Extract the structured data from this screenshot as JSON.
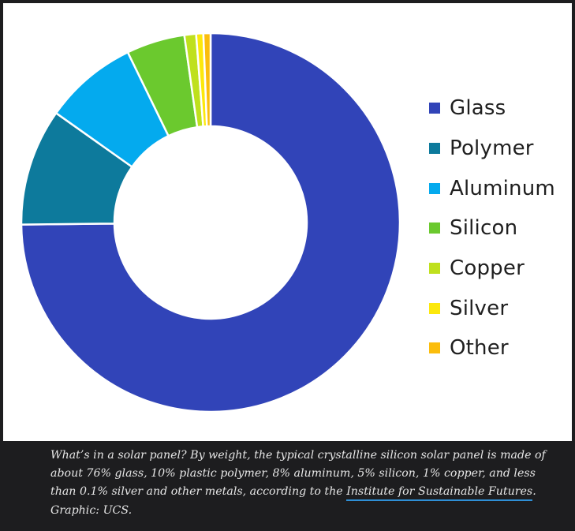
{
  "chart_data": {
    "type": "pie",
    "variant": "donut",
    "categories": [
      "Glass",
      "Polymer",
      "Aluminum",
      "Silicon",
      "Copper",
      "Silver",
      "Other"
    ],
    "values": [
      76,
      10,
      8,
      5,
      1,
      0.1,
      0.1
    ],
    "colors": [
      "#3144b8",
      "#0d7a9c",
      "#04aaee",
      "#6bc92e",
      "#bfe01d",
      "#fce80c",
      "#fbbd0c"
    ],
    "legend_position": "right",
    "title": ""
  },
  "caption": {
    "text": "What’s in a solar panel? By weight, the typical crystalline silicon solar panel is made of about 76% glass, 10% plastic polymer, 8% aluminum, 5% silicon, 1% copper, and less than 0.1% silver and other metals, according to the",
    "link_text": "Institute for Sustainable Futures",
    "credit": ". Graphic: UCS."
  }
}
